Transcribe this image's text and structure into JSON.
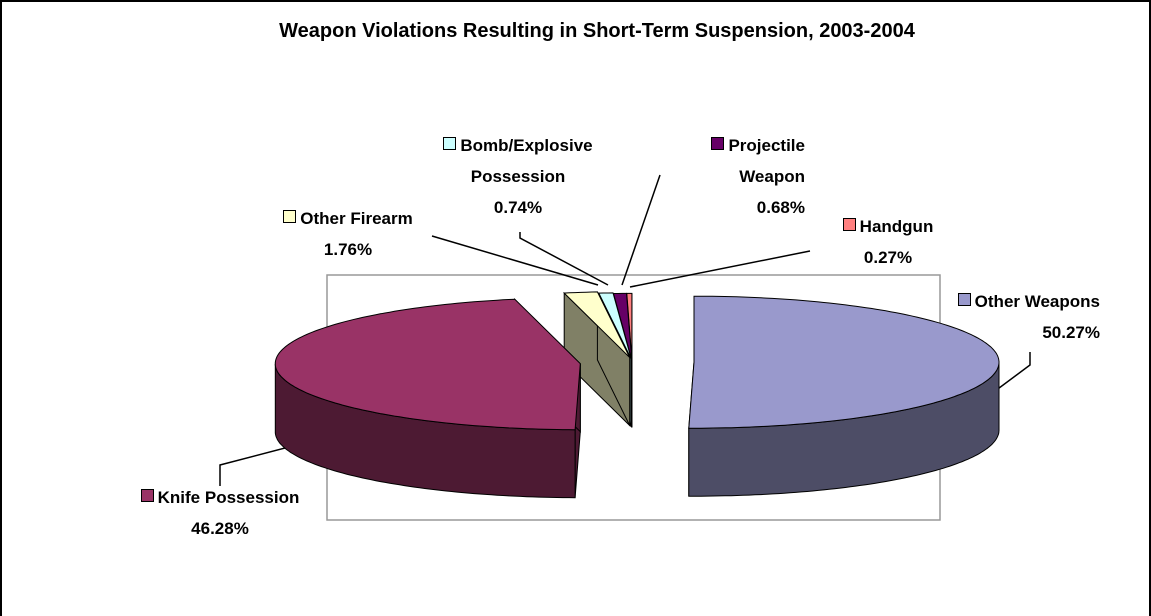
{
  "chart_data": {
    "type": "pie",
    "title": "Weapon Violations Resulting in Short-Term Suspension, 2003-2004",
    "categories": [
      "Other Weapons",
      "Knife Possession",
      "Other Firearm",
      "Bomb/Explosive Possession",
      "Projectile Weapon",
      "Handgun"
    ],
    "values": [
      50.27,
      46.28,
      1.76,
      0.74,
      0.68,
      0.27
    ],
    "value_labels": [
      "50.27%",
      "46.28%",
      "1.76%",
      "0.74%",
      "0.68%",
      "0.27%"
    ],
    "colors": [
      "#9999cc",
      "#993366",
      "#ffffcc",
      "#ccffff",
      "#660066",
      "#ff8080"
    ]
  }
}
